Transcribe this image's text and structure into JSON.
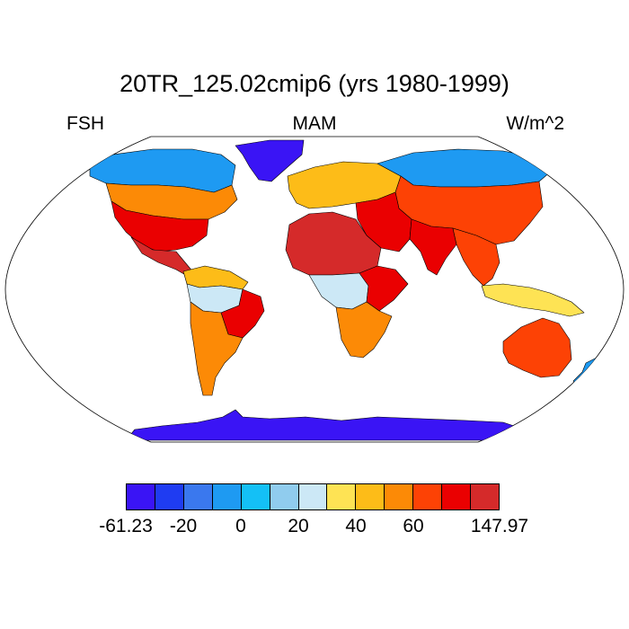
{
  "header": {
    "title": "20TR_125.02cmip6 (yrs 1980-1999)",
    "left_label": "FSH",
    "center_label": "MAM",
    "right_label": "W/m^2"
  },
  "colorbar": {
    "colors": [
      "#3a14f5",
      "#1f3cf2",
      "#3a78ee",
      "#1e9af2",
      "#14c0f6",
      "#90ccee",
      "#cce8f6",
      "#fee354",
      "#fdbc18",
      "#fc8a06",
      "#fd4205",
      "#ea0001",
      "#d52a2a"
    ],
    "labels": [
      {
        "text": "-61.23",
        "boundary": 0
      },
      {
        "text": "-20",
        "boundary": 2
      },
      {
        "text": "0",
        "boundary": 4
      },
      {
        "text": "20",
        "boundary": 6
      },
      {
        "text": "40",
        "boundary": 8
      },
      {
        "text": "60",
        "boundary": 10
      },
      {
        "text": "147.97",
        "boundary": 13
      }
    ]
  },
  "regions": [
    {
      "name": "antarctica",
      "color": "#3a14f5"
    },
    {
      "name": "greenland",
      "color": "#3a14f5"
    },
    {
      "name": "north-america-arctic",
      "color": "#1e9af2"
    },
    {
      "name": "north-america-mid",
      "color": "#fc8a06"
    },
    {
      "name": "north-america-south",
      "color": "#ea0001"
    },
    {
      "name": "central-america",
      "color": "#d52a2a"
    },
    {
      "name": "south-america-north",
      "color": "#fdbc18"
    },
    {
      "name": "amazon",
      "color": "#cce8f6"
    },
    {
      "name": "brazil-east",
      "color": "#ea0001"
    },
    {
      "name": "south-america-south",
      "color": "#fc8a06"
    },
    {
      "name": "europe",
      "color": "#fdbc18"
    },
    {
      "name": "siberia",
      "color": "#1e9af2"
    },
    {
      "name": "asia-mid",
      "color": "#fd4205"
    },
    {
      "name": "middle-east",
      "color": "#ea0001"
    },
    {
      "name": "north-africa",
      "color": "#d52a2a"
    },
    {
      "name": "central-africa",
      "color": "#cce8f6"
    },
    {
      "name": "east-africa",
      "color": "#ea0001"
    },
    {
      "name": "southern-africa",
      "color": "#fc8a06"
    },
    {
      "name": "india",
      "color": "#ea0001"
    },
    {
      "name": "southeast-asia",
      "color": "#fd4205"
    },
    {
      "name": "indonesia",
      "color": "#fee354"
    },
    {
      "name": "australia",
      "color": "#fd4205"
    },
    {
      "name": "new-zealand",
      "color": "#1e9af2"
    }
  ]
}
